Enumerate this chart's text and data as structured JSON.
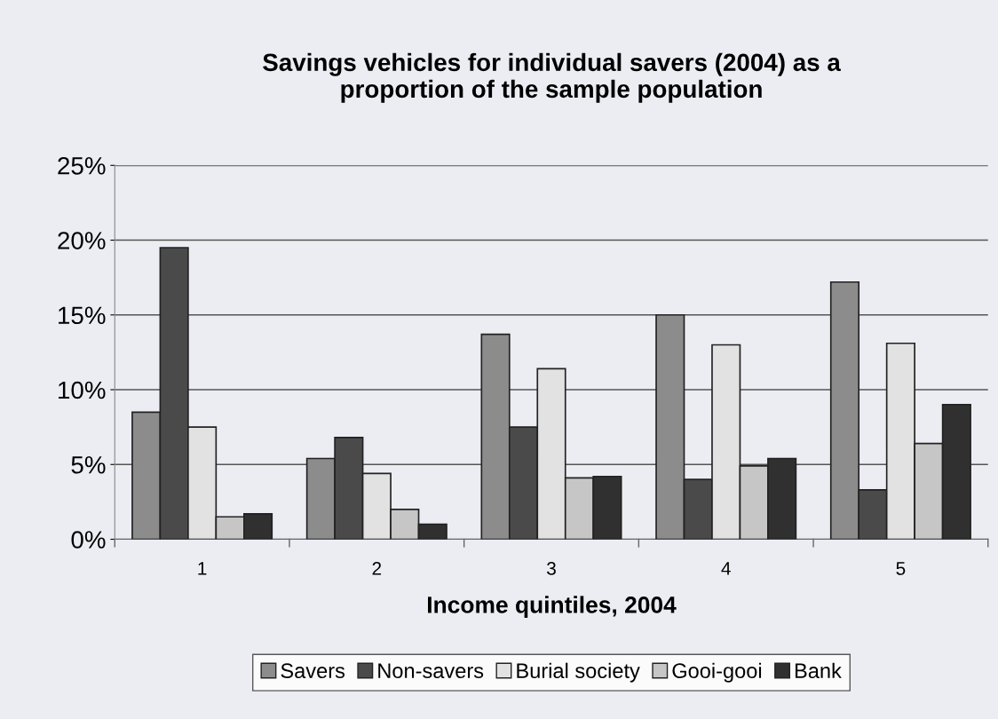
{
  "chart_data": {
    "type": "bar",
    "title": "Savings vehicles for individual savers (2004) as a\nproportion of the sample population",
    "xlabel": "Income quintiles, 2004",
    "categories": [
      "1",
      "2",
      "3",
      "4",
      "5"
    ],
    "series": [
      {
        "name": "Savers",
        "color": "#8c8c8c",
        "values": [
          8.5,
          5.4,
          13.7,
          15.0,
          17.2
        ]
      },
      {
        "name": "Non-savers",
        "color": "#4a4a4a",
        "values": [
          19.5,
          6.8,
          7.5,
          4.0,
          3.3
        ]
      },
      {
        "name": "Burial society",
        "color": "#e2e2e2",
        "values": [
          7.5,
          4.4,
          11.4,
          13.0,
          13.1
        ]
      },
      {
        "name": "Gooi-gooi",
        "color": "#c6c6c6",
        "values": [
          1.5,
          2.0,
          4.1,
          4.9,
          6.4
        ]
      },
      {
        "name": "Bank",
        "color": "#303030",
        "values": [
          1.7,
          1.0,
          4.2,
          5.4,
          9.0
        ]
      }
    ],
    "ylim": [
      0,
      25
    ],
    "yticks": [
      {
        "value": 0,
        "label": "0%"
      },
      {
        "value": 5,
        "label": "5%"
      },
      {
        "value": 10,
        "label": "10%"
      },
      {
        "value": 15,
        "label": "15%"
      },
      {
        "value": 20,
        "label": "20%"
      },
      {
        "value": 25,
        "label": "25%"
      }
    ],
    "grid": "y",
    "legend": "bottom"
  }
}
